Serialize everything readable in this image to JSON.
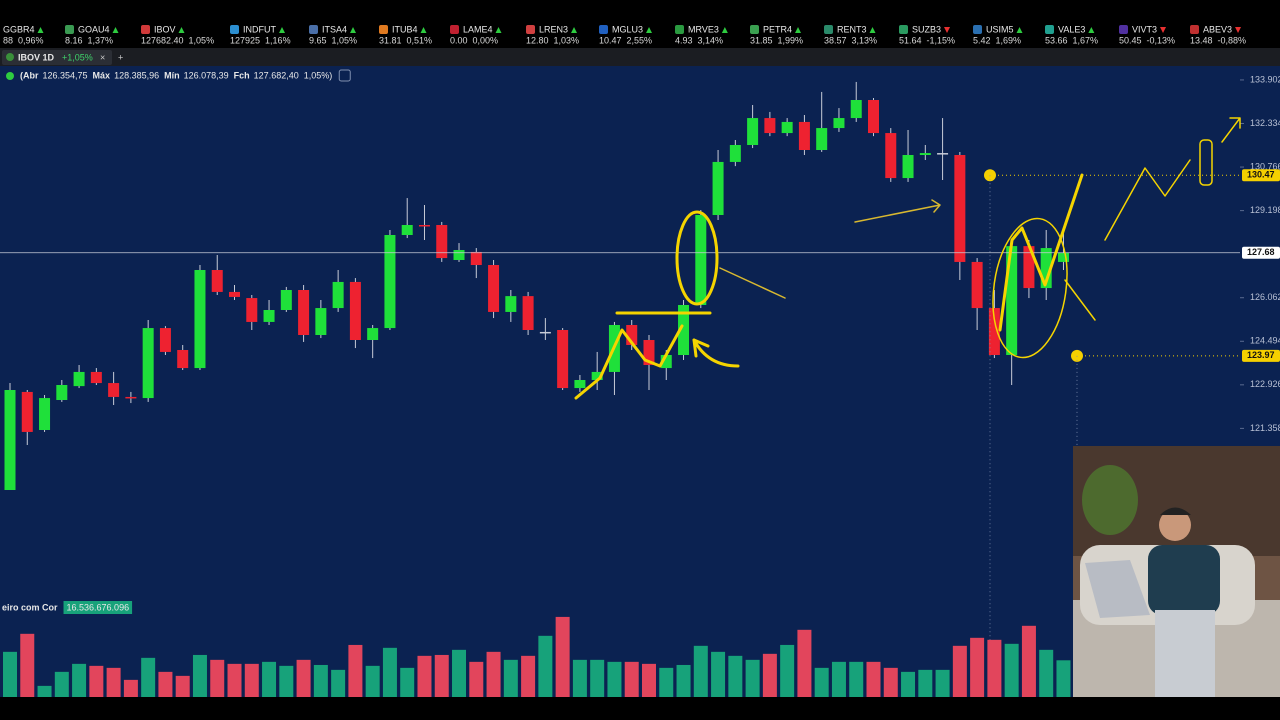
{
  "ticker_strip": [
    {
      "name": "GGBR4",
      "direction": "up",
      "price": "88",
      "change": "0,96%"
    },
    {
      "name": "GOAU4",
      "direction": "up",
      "price": "8.16",
      "change": "1,37%"
    },
    {
      "name": "IBOV",
      "direction": "up",
      "price": "127682.40",
      "change": "1,05%"
    },
    {
      "name": "INDFUT",
      "direction": "up",
      "price": "127925",
      "change": "1,16%"
    },
    {
      "name": "ITSA4",
      "direction": "up",
      "price": "9.65",
      "change": "1,05%"
    },
    {
      "name": "ITUB4",
      "direction": "up",
      "price": "31.81",
      "change": "0,51%"
    },
    {
      "name": "LAME4",
      "direction": "up",
      "price": "0.00",
      "change": "0,00%"
    },
    {
      "name": "LREN3",
      "direction": "up",
      "price": "12.80",
      "change": "1,03%"
    },
    {
      "name": "MGLU3",
      "direction": "up",
      "price": "10.47",
      "change": "2,55%"
    },
    {
      "name": "MRVE3",
      "direction": "up",
      "price": "4.93",
      "change": "3,14%"
    },
    {
      "name": "PETR4",
      "direction": "up",
      "price": "31.85",
      "change": "1,99%"
    },
    {
      "name": "RENT3",
      "direction": "up",
      "price": "38.57",
      "change": "3,13%"
    },
    {
      "name": "SUZB3",
      "direction": "down",
      "price": "51.64",
      "change": "-1,15%"
    },
    {
      "name": "USIM5",
      "direction": "up",
      "price": "5.42",
      "change": "1,69%"
    },
    {
      "name": "VALE3",
      "direction": "up",
      "price": "53.66",
      "change": "1,67%"
    },
    {
      "name": "VIVT3",
      "direction": "down",
      "price": "50.45",
      "change": "-0,13%"
    },
    {
      "name": "ABEV3",
      "direction": "down",
      "price": "13.48",
      "change": "-0,88%"
    }
  ],
  "tab": {
    "title": "IBOV 1D",
    "change": "+1,05%",
    "close_icon": "×",
    "add_icon": "+"
  },
  "ohlc_info": [
    {
      "label": "(Abr",
      "value": "126.354,75"
    },
    {
      "label": "Máx",
      "value": "128.385,96"
    },
    {
      "label": "Mín",
      "value": "126.078,39"
    },
    {
      "label": "Fch",
      "value": "127.682,40"
    },
    {
      "value": "1,05%)"
    }
  ],
  "chart_data": {
    "type": "candlestick",
    "up_color": "#1fe03a",
    "down_color": "#ee2230",
    "doji_color": "#c8ccd8",
    "open": [
      119140,
      122670,
      121300,
      122380,
      122880,
      123390,
      122990,
      122490,
      122450,
      124970,
      124180,
      123530,
      127060,
      126270,
      126050,
      125190,
      125620,
      126340,
      124720,
      125690,
      126630,
      124540,
      124970,
      128320,
      128680,
      128680,
      127420,
      127710,
      127240,
      125550,
      126120,
      124830,
      124900,
      122810,
      123100,
      123390,
      125080,
      124540,
      123530,
      124000,
      125800,
      129040,
      130950,
      131560,
      132530,
      131990,
      132390,
      131380,
      132170,
      132530,
      133180,
      131990,
      130370,
      131200,
      131270,
      131200,
      127350,
      125690,
      124000,
      127920,
      126410,
      127350
    ],
    "high": [
      122990,
      122740,
      122560,
      123100,
      123640,
      123530,
      123390,
      122670,
      125260,
      125040,
      124360,
      127240,
      127600,
      126520,
      126160,
      125980,
      126450,
      126520,
      125980,
      127060,
      126770,
      125080,
      128500,
      129650,
      129400,
      128790,
      128030,
      127850,
      127420,
      126340,
      126270,
      125330,
      124970,
      123280,
      124110,
      125190,
      125260,
      124720,
      124180,
      125980,
      129220,
      131380,
      131740,
      133000,
      132750,
      132530,
      132640,
      133470,
      132890,
      133830,
      133250,
      132170,
      132100,
      131560,
      132530,
      131310,
      127490,
      126340,
      128140,
      128140,
      128500,
      128500
    ],
    "low": [
      119140,
      120760,
      121230,
      122310,
      122810,
      122920,
      122200,
      122270,
      122310,
      124000,
      123460,
      123460,
      126160,
      125980,
      124900,
      125080,
      125550,
      124470,
      124610,
      125550,
      124250,
      123890,
      124900,
      128210,
      128140,
      127350,
      127350,
      126770,
      125330,
      125190,
      124720,
      124540,
      122740,
      122670,
      122740,
      122560,
      124180,
      122740,
      123100,
      123820,
      125690,
      128860,
      130800,
      131450,
      131880,
      131880,
      131200,
      131310,
      132030,
      132390,
      131880,
      130230,
      130230,
      131020,
      130300,
      126700,
      124900,
      123890,
      122920,
      126050,
      125980,
      127060
    ],
    "close": [
      122740,
      121230,
      122450,
      122920,
      123390,
      122990,
      122490,
      122450,
      124970,
      124110,
      123530,
      127060,
      126270,
      126090,
      125190,
      125620,
      126340,
      124720,
      125690,
      126630,
      124540,
      124970,
      128320,
      128680,
      128640,
      127490,
      127780,
      127240,
      125550,
      126120,
      124900,
      124830,
      122810,
      123100,
      123390,
      125080,
      124360,
      123640,
      124000,
      125800,
      129040,
      130950,
      131560,
      132530,
      131990,
      132390,
      131380,
      132170,
      132530,
      133180,
      131990,
      130370,
      131200,
      131270,
      131270,
      127350,
      125690,
      124000,
      127920,
      126410,
      127850,
      127680
    ],
    "ylim": [
      115180,
      134404
    ],
    "yticks": [
      {
        "value": 133902,
        "label": "133.902"
      },
      {
        "value": 132334,
        "label": "132.334"
      },
      {
        "value": 130766,
        "label": "130.766"
      },
      {
        "value": 129198,
        "label": "129.198"
      },
      {
        "value": 126062,
        "label": "126.062"
      },
      {
        "value": 124494,
        "label": "124.494"
      },
      {
        "value": 122926,
        "label": "122.926"
      },
      {
        "value": 121358,
        "label": "121.358"
      }
    ],
    "price_levels": [
      {
        "value": 130470,
        "label": "130.47",
        "color": "#f5d000"
      },
      {
        "value": 127680,
        "label": "127.68",
        "color": "#ffffff"
      },
      {
        "value": 123970,
        "label": "123.97",
        "color": "#f5d000"
      }
    ],
    "volume": {
      "title": "eiro com Cor",
      "value_label": "16.536.676.096",
      "up_color": "#17a27a",
      "down_color": "#e2455c",
      "ylim": [
        0,
        43.6
      ],
      "values": [
        20.3,
        28.4,
        5.0,
        11.3,
        14.9,
        14.0,
        13.1,
        7.7,
        17.6,
        11.3,
        9.5,
        18.9,
        16.7,
        14.9,
        14.9,
        15.8,
        14.0,
        16.7,
        14.4,
        12.2,
        23.4,
        14.0,
        22.1,
        13.1,
        18.5,
        18.9,
        21.2,
        15.8,
        20.3,
        16.7,
        18.5,
        27.5,
        36.0,
        16.7,
        16.7,
        15.8,
        15.8,
        14.9,
        13.1,
        14.4,
        23.0,
        20.3,
        18.5,
        16.7,
        19.4,
        23.4,
        30.2,
        13.1,
        15.8,
        15.8,
        15.8,
        13.1,
        11.3,
        12.2,
        12.2,
        23.0,
        26.6,
        25.7,
        23.9,
        32.0,
        21.2,
        16.5
      ]
    }
  }
}
